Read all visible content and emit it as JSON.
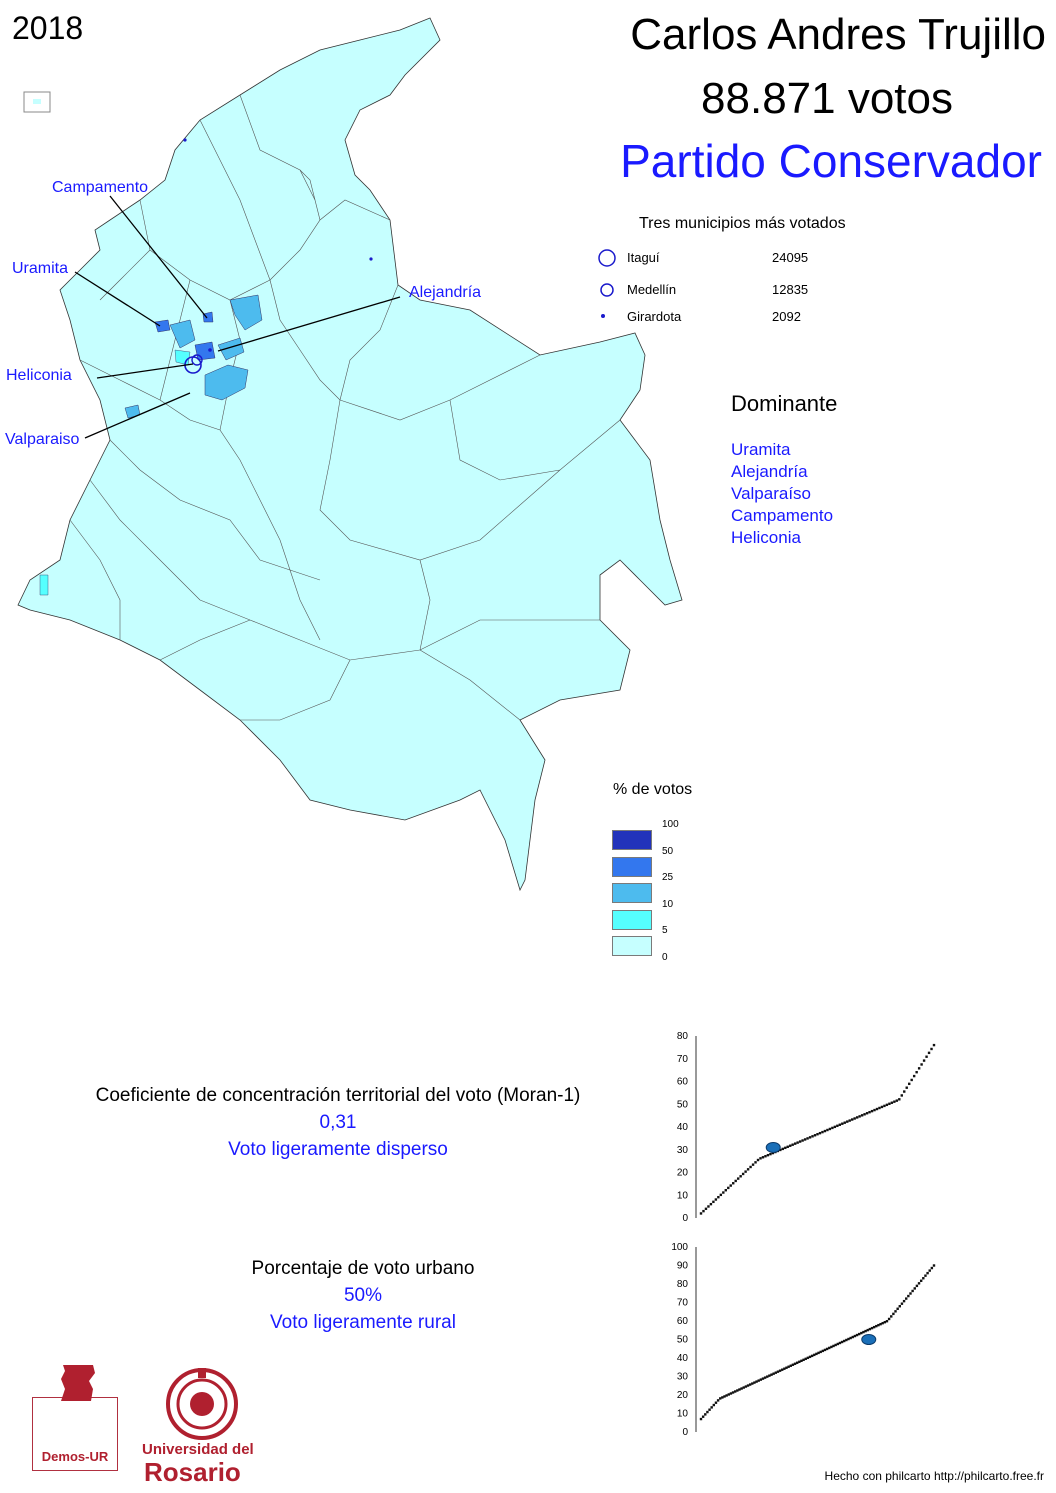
{
  "header": {
    "year": "2018",
    "candidate": "Carlos Andres Trujillo",
    "votes": "88.871 votos",
    "party": "Partido Conservador"
  },
  "top_municipios": {
    "title": "Tres municipios más votados",
    "items": [
      {
        "name": "Itaguí",
        "value": "24095"
      },
      {
        "name": "Medellín",
        "value": "12835"
      },
      {
        "name": "Girardota",
        "value": "2092"
      }
    ]
  },
  "dominante": {
    "title": "Dominante",
    "items": [
      "Uramita",
      "Alejandría",
      "Valparaíso",
      "Campamento",
      "Heliconia"
    ]
  },
  "map_labels": {
    "campamento": "Campamento",
    "uramita": "Uramita",
    "alejandria": "Alejandría",
    "heliconia": "Heliconia",
    "valparaiso": "Valparaiso"
  },
  "legend": {
    "title": "% de votos",
    "classes": [
      {
        "label": "100",
        "color": "#2233bb"
      },
      {
        "label": "50",
        "color": "#3377ee"
      },
      {
        "label": "25",
        "color": "#4dbbee"
      },
      {
        "label": "10",
        "color": "#55ffff"
      },
      {
        "label": "5",
        "color": "#c6ffff"
      },
      {
        "label": "0",
        "color": ""
      }
    ]
  },
  "moran": {
    "title": "Coeficiente de concentración territorial del voto (Moran-1)",
    "value": "0,31",
    "desc": "Voto ligeramente disperso"
  },
  "urbano": {
    "title": "Porcentaje de voto urbano",
    "value": "50%",
    "desc": "Voto ligeramente rural"
  },
  "chart_data": [
    {
      "type": "scatter",
      "ylim": [
        0,
        80
      ],
      "yticks": [
        "0",
        "10",
        "20",
        "30",
        "40",
        "50",
        "60",
        "70",
        "80"
      ],
      "highlight": 31
    },
    {
      "type": "scatter",
      "ylim": [
        0,
        100
      ],
      "yticks": [
        "0",
        "10",
        "20",
        "30",
        "40",
        "50",
        "60",
        "70",
        "80",
        "90",
        "100"
      ],
      "highlight": 50
    }
  ],
  "logos": {
    "demos": "Demos-UR",
    "universidad_line1": "Universidad del",
    "universidad_line2": "Rosario"
  },
  "credit": "Hecho con philcarto http://philcarto.free.fr",
  "colors": {
    "base": "#c6ffff",
    "accent": "#1a1aff",
    "brand": "#b0202f"
  }
}
